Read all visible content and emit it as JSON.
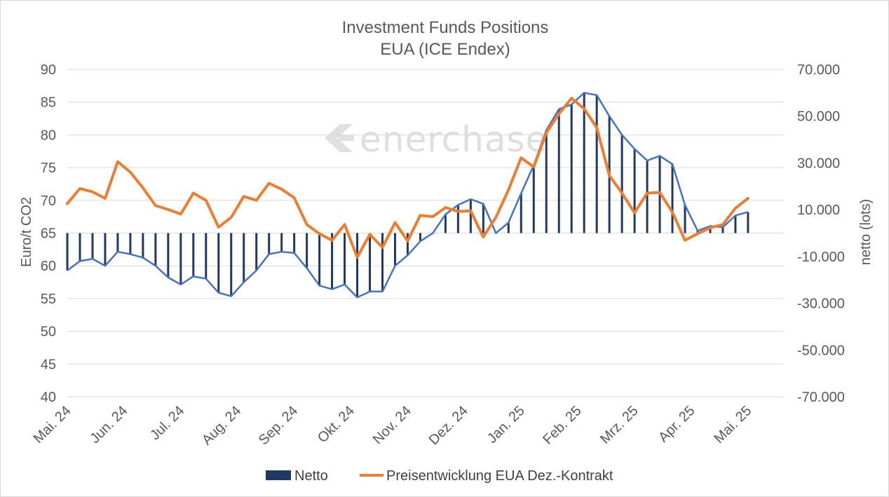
{
  "chart_data": {
    "type": "bar+line (dual axis)",
    "title": "Investment Funds Positions",
    "subtitle": "EUA (ICE Endex)",
    "watermark": "enerchase",
    "ylabel_left": "Euro/t CO2",
    "ylabel_right": "netto (lots)",
    "ylim_left": [
      40,
      90
    ],
    "ylim_right": [
      -70000,
      70000
    ],
    "yticks_left": [
      "90",
      "85",
      "80",
      "75",
      "70",
      "65",
      "60",
      "55",
      "50",
      "45",
      "40"
    ],
    "yticks_right": [
      "70.000",
      "50.000",
      "30.000",
      "10.000",
      "-10.000",
      "-30.000",
      "-50.000",
      "-70.000"
    ],
    "x_tick_labels": [
      "Mai. 24",
      "Jun. 24",
      "Jul. 24",
      "Aug. 24",
      "Sep. 24",
      "Okt. 24",
      "Nov. 24",
      "Dez. 24",
      "Jan. 25",
      "Feb. 25",
      "Mrz. 25",
      "Apr. 25",
      "Mai. 25"
    ],
    "x_tick_week_index": [
      0,
      4.5,
      9,
      13.5,
      18,
      22.5,
      27,
      31.5,
      36,
      40.5,
      45,
      49.5,
      54
    ],
    "grid": true,
    "legend_position": "bottom",
    "colors": {
      "netto_bar": "#1f3864",
      "netto_outline": "#4472c4",
      "price_line": "#ed7d31",
      "grid": "#d9d9d9",
      "text": "#595959"
    },
    "series": [
      {
        "name": "Netto",
        "axis": "right",
        "render": "bars with outline",
        "values": [
          -16000,
          -12000,
          -11000,
          -14000,
          -8000,
          -9000,
          -10500,
          -14000,
          -19000,
          -22000,
          -18500,
          -19500,
          -25500,
          -27000,
          -21000,
          -16000,
          -9000,
          -8000,
          -8500,
          -15000,
          -22500,
          -24000,
          -22000,
          -27500,
          -25000,
          -25000,
          -14000,
          -9500,
          -3500,
          0,
          8000,
          12000,
          14500,
          12500,
          0,
          4500,
          17000,
          29000,
          44000,
          53000,
          55000,
          60000,
          59000,
          50000,
          42000,
          36000,
          31000,
          33000,
          29500,
          12000,
          1000,
          3000,
          2500,
          7500,
          9000
        ]
      },
      {
        "name": "Preisentwicklung EUA Dez.-Kontrakt",
        "axis": "left",
        "render": "line",
        "values": [
          69.5,
          71.8,
          71.3,
          70.3,
          75.9,
          74.3,
          71.9,
          69.2,
          68.6,
          67.9,
          71.1,
          70.0,
          65.9,
          67.4,
          70.6,
          70.0,
          72.6,
          71.7,
          70.4,
          66.3,
          64.9,
          63.9,
          66.3,
          61.3,
          64.8,
          62.8,
          66.6,
          63.8,
          67.7,
          67.5,
          68.9,
          68.3,
          68.4,
          64.4,
          67.4,
          71.6,
          76.5,
          75.1,
          80.3,
          83.2,
          85.6,
          84.0,
          81.1,
          73.8,
          71.1,
          68.1,
          71.1,
          71.2,
          68.2,
          63.9,
          64.9,
          65.8,
          66.3,
          68.8,
          70.3
        ]
      }
    ]
  }
}
